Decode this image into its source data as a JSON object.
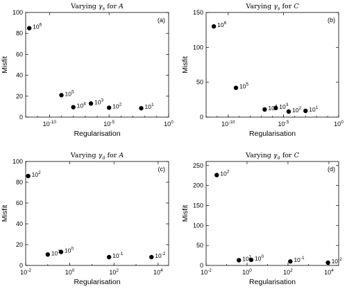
{
  "chart_data": [
    {
      "type": "scatter",
      "panel": "(a)",
      "title": "Varying γs for A",
      "title_parts": {
        "prefix": "Varying ",
        "gamma": "γ",
        "sub": "s",
        "suffix": " for ",
        "var": "A"
      },
      "xlabel": "Regularisation",
      "ylabel": "Misfit",
      "xscale": "log",
      "xlim": [
        1e-12,
        1
      ],
      "ylim": [
        0,
        100
      ],
      "xticks": [
        {
          "v": 1e-10,
          "base": "10",
          "exp": "-10"
        },
        {
          "v": 1e-05,
          "base": "10",
          "exp": "-5"
        },
        {
          "v": 1,
          "base": "10",
          "exp": "0"
        }
      ],
      "yticks": [
        {
          "v": 0,
          "label": "0"
        },
        {
          "v": 20,
          "label": "20"
        },
        {
          "v": 40,
          "label": "40"
        },
        {
          "v": 60,
          "label": "60"
        },
        {
          "v": 80,
          "label": "80"
        },
        {
          "v": 100,
          "label": "100"
        }
      ],
      "points": [
        {
          "x": 2e-12,
          "y": 85,
          "base": "10",
          "exp": "6"
        },
        {
          "x": 1e-09,
          "y": 21,
          "base": "10",
          "exp": "5"
        },
        {
          "x": 1e-08,
          "y": 9.5,
          "base": "10",
          "exp": "4"
        },
        {
          "x": 3e-07,
          "y": 13,
          "base": "10",
          "exp": "3"
        },
        {
          "x": 1e-05,
          "y": 9,
          "base": "10",
          "exp": "2"
        },
        {
          "x": 0.005,
          "y": 8.5,
          "base": "10",
          "exp": "1"
        }
      ]
    },
    {
      "type": "scatter",
      "panel": "(b)",
      "title": "Varying γs for C",
      "title_parts": {
        "prefix": "Varying ",
        "gamma": "γ",
        "sub": "s",
        "suffix": " for ",
        "var": "C"
      },
      "xlabel": "Regularisation",
      "ylabel": "Misfit",
      "xscale": "log",
      "xlim": [
        1e-12,
        1
      ],
      "ylim": [
        0,
        150
      ],
      "xticks": [
        {
          "v": 1e-10,
          "base": "10",
          "exp": "-10"
        },
        {
          "v": 1e-05,
          "base": "10",
          "exp": "-5"
        },
        {
          "v": 1,
          "base": "10",
          "exp": "0"
        }
      ],
      "yticks": [
        {
          "v": 0,
          "label": "0"
        },
        {
          "v": 50,
          "label": "50"
        },
        {
          "v": 100,
          "label": "100"
        },
        {
          "v": 150,
          "label": "150"
        }
      ],
      "points": [
        {
          "x": 5e-12,
          "y": 130,
          "base": "10",
          "exp": "6"
        },
        {
          "x": 5e-10,
          "y": 42,
          "base": "10",
          "exp": "5"
        },
        {
          "x": 2e-07,
          "y": 11,
          "base": "10",
          "exp": "4"
        },
        {
          "x": 2e-06,
          "y": 13,
          "base": "10",
          "exp": "3"
        },
        {
          "x": 3e-05,
          "y": 8,
          "base": "10",
          "exp": "2"
        },
        {
          "x": 0.001,
          "y": 9,
          "base": "10",
          "exp": "1"
        }
      ]
    },
    {
      "type": "scatter",
      "panel": "(c)",
      "title": "Varying γa for A",
      "title_parts": {
        "prefix": "Varying ",
        "gamma": "γ",
        "sub": "a",
        "suffix": " for ",
        "var": "A"
      },
      "xlabel": "Regularisation",
      "ylabel": "Misfit",
      "xscale": "log",
      "xlim": [
        0.01,
        30000
      ],
      "ylim": [
        0,
        100
      ],
      "xticks": [
        {
          "v": 0.01,
          "base": "10",
          "exp": "-2"
        },
        {
          "v": 1,
          "base": "10",
          "exp": "0"
        },
        {
          "v": 100,
          "base": "10",
          "exp": "2"
        },
        {
          "v": 10000,
          "base": "10",
          "exp": "4"
        }
      ],
      "yticks": [
        {
          "v": 0,
          "label": "0"
        },
        {
          "v": 20,
          "label": "20"
        },
        {
          "v": 40,
          "label": "40"
        },
        {
          "v": 60,
          "label": "60"
        },
        {
          "v": 80,
          "label": "80"
        },
        {
          "v": 100,
          "label": "100"
        }
      ],
      "points": [
        {
          "x": 0.013,
          "y": 86,
          "base": "10",
          "exp": "2"
        },
        {
          "x": 0.1,
          "y": 10.5,
          "base": "10",
          "exp": "1"
        },
        {
          "x": 0.4,
          "y": 13,
          "base": "10",
          "exp": "0"
        },
        {
          "x": 60,
          "y": 8,
          "base": "10",
          "exp": "-1"
        },
        {
          "x": 5000,
          "y": 8,
          "base": "10",
          "exp": "-2"
        }
      ]
    },
    {
      "type": "scatter",
      "panel": "(d)",
      "title": "Varying γa for C",
      "title_parts": {
        "prefix": "Varying ",
        "gamma": "γ",
        "sub": "a",
        "suffix": " for ",
        "var": "C"
      },
      "xlabel": "Regularisation",
      "ylabel": "Misfit",
      "xscale": "log",
      "xlim": [
        0.01,
        30000
      ],
      "ylim": [
        0,
        260
      ],
      "xticks": [
        {
          "v": 0.01,
          "base": "10",
          "exp": "-2"
        },
        {
          "v": 1,
          "base": "10",
          "exp": "0"
        },
        {
          "v": 100,
          "base": "10",
          "exp": "2"
        },
        {
          "v": 10000,
          "base": "10",
          "exp": "4"
        }
      ],
      "yticks": [
        {
          "v": 0,
          "label": "0"
        },
        {
          "v": 50,
          "label": "50"
        },
        {
          "v": 100,
          "label": "100"
        },
        {
          "v": 150,
          "label": "150"
        },
        {
          "v": 200,
          "label": "200"
        },
        {
          "v": 250,
          "label": "250"
        }
      ],
      "points": [
        {
          "x": 0.033,
          "y": 226,
          "base": "10",
          "exp": "2"
        },
        {
          "x": 0.4,
          "y": 13,
          "base": "10",
          "exp": "1"
        },
        {
          "x": 1.6,
          "y": 14,
          "base": "10",
          "exp": "0"
        },
        {
          "x": 130,
          "y": 10,
          "base": "10",
          "exp": "-1"
        },
        {
          "x": 9000,
          "y": 7,
          "base": "10",
          "exp": "-2"
        }
      ]
    }
  ]
}
